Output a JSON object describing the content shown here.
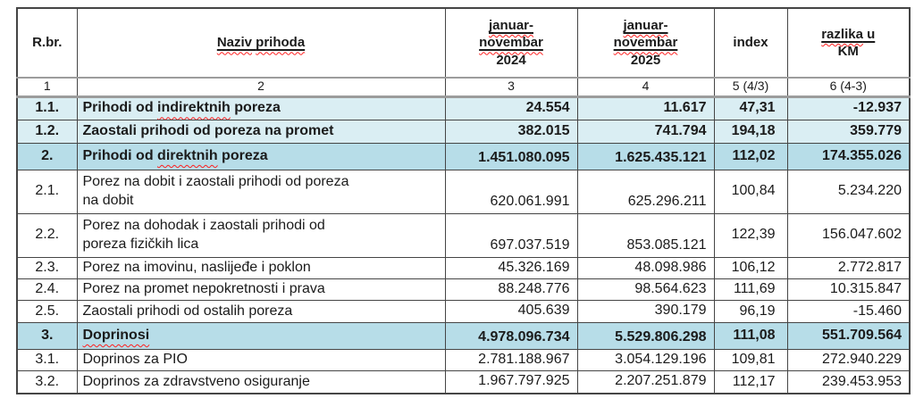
{
  "header": {
    "rbr": "R.br.",
    "naziv": "Naziv prihoda",
    "p2024": {
      "l1": "januar-",
      "l2": "novembar",
      "l3": "2024"
    },
    "p2025": {
      "l1": "januar-",
      "l2": "novembar",
      "l3": "2025"
    },
    "index": "index",
    "razlika": {
      "l1": "razlika u",
      "l2": "KM"
    }
  },
  "colnums": {
    "c1": "1",
    "c2": "2",
    "c3": "3",
    "c4": "4",
    "c5": "5 (4/3)",
    "c6": "6 (4-3)"
  },
  "rows": [
    {
      "rbr": "1.1.",
      "naziv": "Prihodi od indirektnih poreza",
      "y2024": "24.554",
      "y2025": "11.617",
      "index": "47,31",
      "diff": "-12.937",
      "variant": "light",
      "tall": false
    },
    {
      "rbr": "1.2.",
      "naziv": "Zaostali prihodi od poreza na promet",
      "y2024": "382.015",
      "y2025": "741.794",
      "index": "194,18",
      "diff": "359.779",
      "variant": "light",
      "tall": false
    },
    {
      "rbr": "2.",
      "naziv": "Prihodi od direktnih poreza",
      "y2024": "1.451.080.095",
      "y2025": "1.625.435.121",
      "index": "112,02",
      "diff": "174.355.026",
      "variant": "medium",
      "tall": false
    },
    {
      "rbr": "2.1.",
      "naziv": "Porez na dobit i zaostali prihodi od poreza\nna dobit",
      "y2024": "620.061.991",
      "y2025": "625.296.211",
      "index": "100,84",
      "diff": "5.234.220",
      "variant": "plain",
      "tall": true
    },
    {
      "rbr": "2.2.",
      "naziv": "Porez na dohodak i zaostali prihodi od\nporeza fizičkih lica",
      "y2024": "697.037.519",
      "y2025": "853.085.121",
      "index": "122,39",
      "diff": "156.047.602",
      "variant": "plain",
      "tall": true
    },
    {
      "rbr": "2.3.",
      "naziv": "Porez na imovinu, naslijeđe i poklon",
      "y2024": "45.326.169",
      "y2025": "48.098.986",
      "index": "106,12",
      "diff": "2.772.817",
      "variant": "plain",
      "tall": false
    },
    {
      "rbr": "2.4.",
      "naziv": "Porez na promet nepokretnosti i prava",
      "y2024": "88.248.776",
      "y2025": "98.564.623",
      "index": "111,69",
      "diff": "10.315.847",
      "variant": "plain",
      "tall": false
    },
    {
      "rbr": "2.5.",
      "naziv": "Zaostali prihodi od ostalih poreza",
      "y2024": "405.639",
      "y2025": "390.179",
      "index": "96,19",
      "diff": "-15.460",
      "variant": "plain",
      "tall": false
    },
    {
      "rbr": "3.",
      "naziv": "Doprinosi",
      "y2024": "4.978.096.734",
      "y2025": "5.529.806.298",
      "index": "111,08",
      "diff": "551.709.564",
      "variant": "medium",
      "tall": false
    },
    {
      "rbr": "3.1.",
      "naziv": "Doprinos za PIO",
      "y2024": "2.781.188.967",
      "y2025": "3.054.129.196",
      "index": "109,81",
      "diff": "272.940.229",
      "variant": "plain",
      "tall": false
    },
    {
      "rbr": "3.2.",
      "naziv": "Doprinos za zdravstveno osiguranje",
      "y2024": "1.967.797.925",
      "y2025": "2.207.251.879",
      "index": "112,17",
      "diff": "239.453.953",
      "variant": "plain",
      "tall": false
    }
  ],
  "spellcheck": {
    "words": [
      "indirektnih",
      "direktnih",
      "Doprinosi",
      "novembar",
      "januar-",
      "prihoda",
      "razlika",
      "Naziv"
    ]
  },
  "colors": {
    "row_highlight_light": "#daeef3",
    "row_highlight_medium": "#b7dde8",
    "spellcheck_red": "#ff1f1f",
    "grid_border": "#454545",
    "section_separator": "#9c9c9c",
    "text": "#1b1b1b"
  }
}
